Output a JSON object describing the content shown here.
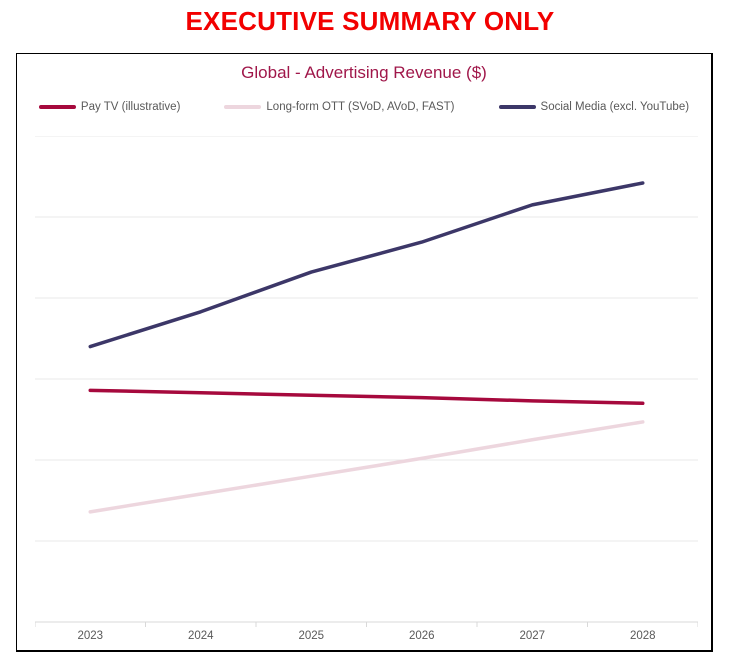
{
  "page": {
    "title": "EXECUTIVE SUMMARY ONLY",
    "title_color": "#f20000"
  },
  "chart": {
    "title": "Global - Advertising Revenue ($)",
    "title_color": "#a0174a",
    "legend": [
      {
        "label": "Pay TV (illustrative)",
        "color": "#a6093d"
      },
      {
        "label": "Long-form OTT (SVoD, AVoD, FAST)",
        "color": "#edd6de"
      },
      {
        "label": "Social Media (excl. YouTube)",
        "color": "#3c3768"
      }
    ],
    "axis_text_color": "#595959",
    "gridline_color": "#e9e9e9",
    "axis_line_color": "#d9d9d9"
  },
  "chart_data": {
    "type": "line",
    "title": "Global - Advertising Revenue ($)",
    "categories": [
      "2023",
      "2024",
      "2025",
      "2026",
      "2027",
      "2028"
    ],
    "series": [
      {
        "name": "Pay TV (illustrative)",
        "color": "#a6093d",
        "values": [
          2.86,
          2.83,
          2.8,
          2.77,
          2.73,
          2.7
        ]
      },
      {
        "name": "Long-form OTT (SVoD, AVoD, FAST)",
        "color": "#edd6de",
        "values": [
          1.36,
          1.58,
          1.8,
          2.02,
          2.25,
          2.47
        ]
      },
      {
        "name": "Social Media (excl. YouTube)",
        "color": "#3c3768",
        "values": [
          3.4,
          3.83,
          4.32,
          4.69,
          5.15,
          5.42
        ]
      }
    ],
    "xlabel": "",
    "ylabel": "",
    "ylim": [
      0,
      6
    ],
    "y_axis_labels_visible": false,
    "gridlines": "horizontal",
    "legend_position": "top",
    "note": "Y axis is unlabeled in the source image; series values are estimated in gridline units (1 unit = one horizontal gridline interval above the x axis)."
  }
}
